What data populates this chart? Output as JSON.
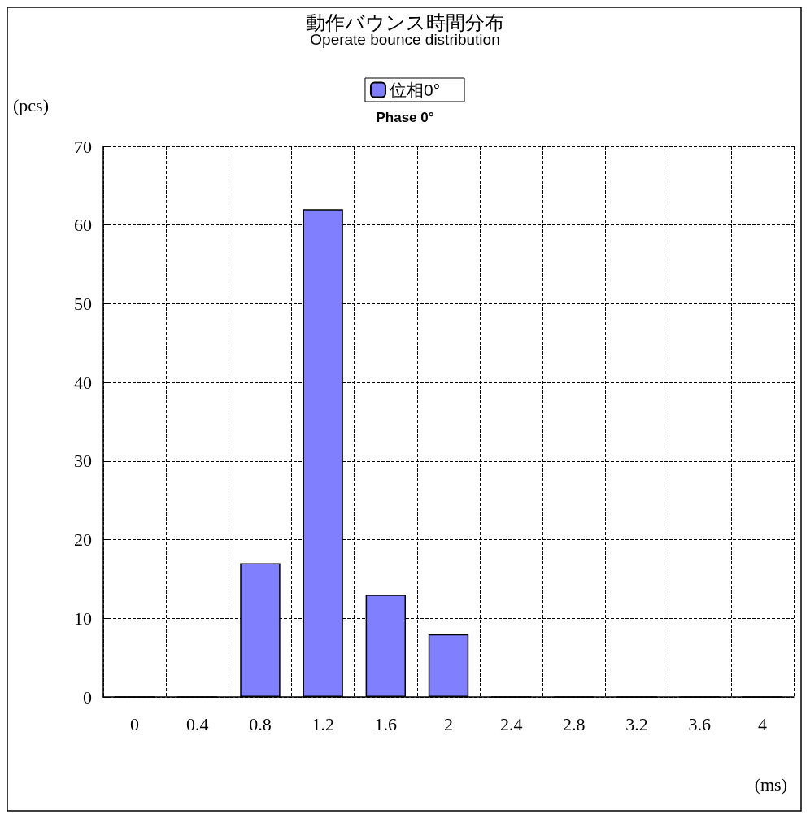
{
  "chart_data": {
    "type": "bar",
    "title": "動作バウンス時間分布",
    "subtitle": "Operate bounce distribution",
    "xlabel": "(ms)",
    "ylabel": "(pcs)",
    "annotations": [
      "Phase 0°"
    ],
    "categories": [
      "0",
      "0.4",
      "0.8",
      "1.2",
      "1.6",
      "2",
      "2.4",
      "2.8",
      "3.2",
      "3.6",
      "4"
    ],
    "series": [
      {
        "name": "位相0°",
        "color": "#8080ff",
        "values": [
          0,
          0,
          17,
          62,
          13,
          8,
          0,
          0,
          0,
          0,
          0
        ]
      }
    ],
    "ylim": [
      0,
      70
    ],
    "yticks": [
      0,
      10,
      20,
      30,
      40,
      50,
      60,
      70
    ],
    "grid": true,
    "legend": "top"
  }
}
